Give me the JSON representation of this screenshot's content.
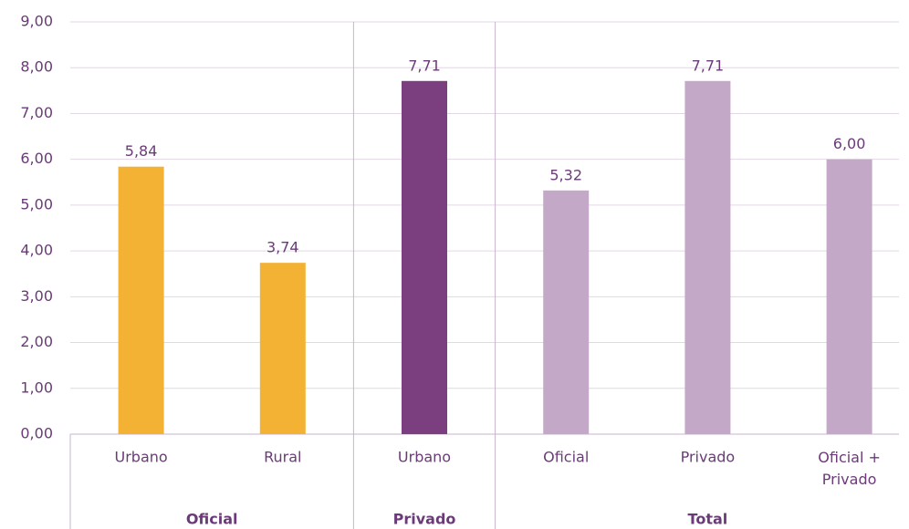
{
  "chart_data": {
    "type": "bar",
    "categories": [
      "Urbano",
      "Rural",
      "Urbano",
      "Oficial",
      "Privado",
      "Oficial + Privado"
    ],
    "groups": [
      {
        "name": "Oficial",
        "size": 2
      },
      {
        "name": "Privado",
        "size": 1
      },
      {
        "name": "Total",
        "size": 3
      }
    ],
    "values": [
      5.84,
      3.74,
      7.71,
      5.32,
      7.71,
      6.0
    ],
    "value_labels": [
      "5,84",
      "3,74",
      "7,71",
      "5,32",
      "7,71",
      "6,00"
    ],
    "colors": [
      "#f3b233",
      "#f3b233",
      "#7b3f80",
      "#c4a8c8",
      "#c4a8c8",
      "#c4a8c8"
    ],
    "ylim": [
      0,
      9
    ],
    "yticks": [
      {
        "value": 0,
        "label": "0,00"
      },
      {
        "value": 1,
        "label": "1,00"
      },
      {
        "value": 2,
        "label": "2,00"
      },
      {
        "value": 3,
        "label": "3,00"
      },
      {
        "value": 4,
        "label": "4,00"
      },
      {
        "value": 5,
        "label": "5,00"
      },
      {
        "value": 6,
        "label": "6,00"
      },
      {
        "value": 7,
        "label": "7,00"
      },
      {
        "value": 8,
        "label": "8,00"
      },
      {
        "value": 9,
        "label": "9,00"
      }
    ],
    "grid": true
  }
}
